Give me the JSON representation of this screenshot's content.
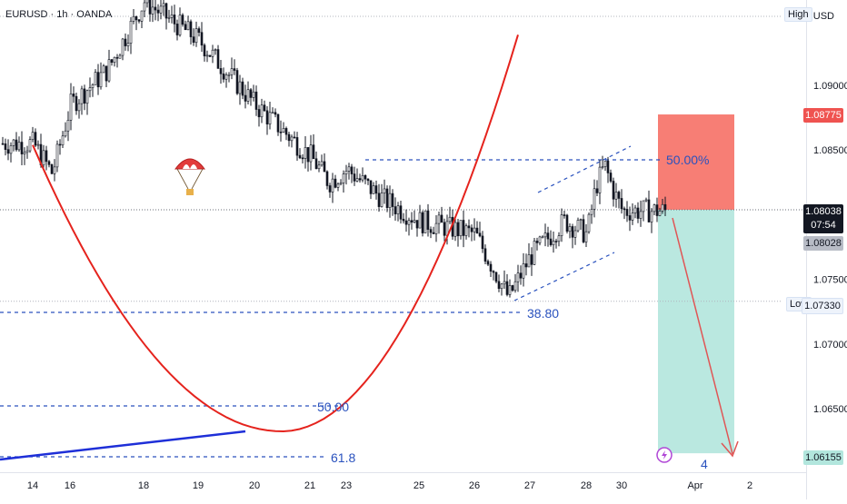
{
  "header": {
    "symbol_title": "EURUSD · 1h · OANDA",
    "currency": "USD"
  },
  "chart_data": {
    "type": "candlestick",
    "symbol": "EURUSD",
    "interval": "1h",
    "source": "OANDA",
    "x_tick_labels": [
      "14",
      "16",
      "18",
      "19",
      "20",
      "21",
      "23",
      "25",
      "26",
      "27",
      "28",
      "30",
      "Apr",
      "2"
    ],
    "y_tick_labels": [
      "1.09000",
      "1.08500",
      "1.07500",
      "1.07000",
      "1.06500"
    ],
    "y_ticks": [
      1.09,
      1.085,
      1.075,
      1.07,
      1.065
    ],
    "ylim": [
      1.0578,
      1.1005
    ],
    "price_close_path": [
      [
        14,
        1.0855
      ],
      [
        15,
        1.0832
      ],
      [
        16,
        1.0885
      ],
      [
        17,
        1.0912
      ],
      [
        18,
        1.0965
      ],
      [
        19,
        1.0935
      ],
      [
        20,
        1.0885
      ],
      [
        21,
        1.0845
      ],
      [
        22,
        1.0825
      ],
      [
        23,
        1.0835
      ],
      [
        24,
        1.0812
      ],
      [
        25,
        1.0795
      ],
      [
        26,
        1.0785
      ],
      [
        26.6,
        1.0736
      ],
      [
        27,
        1.0768
      ],
      [
        27.6,
        1.0795
      ],
      [
        28,
        1.0785
      ],
      [
        28.5,
        1.0822
      ],
      [
        29,
        1.0838
      ],
      [
        29.5,
        1.0818
      ],
      [
        30,
        1.0803
      ]
    ],
    "levels": {
      "high_label": "High",
      "low_label": "Low",
      "low_value": "1.07330",
      "stop_value": "1.08775",
      "last_price": "1.08038",
      "countdown": "07:54",
      "prev_close": "1.08028",
      "target_value": "1.06155"
    },
    "annotations": {
      "fib_50_top": "50.00%",
      "fib_38": "38.80",
      "fib_50_left": "50.00",
      "fib_61": "61.8",
      "event_count": "4"
    },
    "colors": {
      "candle": "#131722",
      "stop_zone": "#f7776e",
      "target_zone": "#b2e6dd",
      "curve": "#e5231d",
      "trend_line": "#1e2fd8",
      "fib_line": "#2a52be",
      "arrow": "#e05555",
      "stop_tag": "#ef5350",
      "target_tag": "#b2e6dd"
    },
    "grid": false
  }
}
